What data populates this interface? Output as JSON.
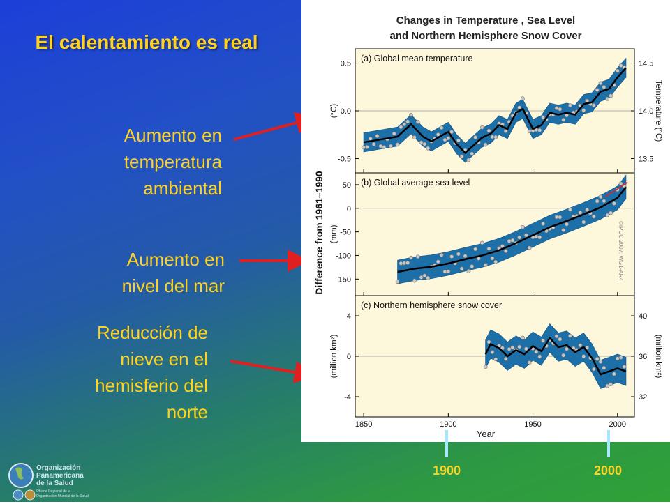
{
  "slide": {
    "title": "El calentamiento es real",
    "labels": [
      {
        "line1": "Aumento en",
        "line2": "temperatura",
        "line3": "ambiental"
      },
      {
        "line1": "Aumento en",
        "line2": "nivel del mar"
      },
      {
        "line1": "Reducción de",
        "line2": "nieve en el",
        "line3": "hemisferio del",
        "line4": "norte"
      }
    ],
    "year_markers": [
      "1900",
      "2000"
    ],
    "logo": {
      "line1": "Organización",
      "line2": "Panamericana",
      "line3": "de la Salud",
      "sub1": "Oficina Regional de la",
      "sub2": "Organización Mundial de la Salud"
    },
    "colors": {
      "label": "#ffd21f",
      "arrow": "#e02020",
      "marker": "#a8e8ff"
    }
  },
  "chart_data": {
    "title_line1": "Changes in Temperature , Sea Level",
    "title_line2": "and Northern Hemisphere Snow Cover",
    "shared_ylabel": "Difference from 1961–1990",
    "xlabel": "Year",
    "xticks": [
      "1850",
      "1900",
      "1950",
      "2000"
    ],
    "xlim": [
      1845,
      2010
    ],
    "copyright": "©IPCC 2007: WG1-AR4",
    "panels": [
      {
        "type": "line",
        "title": "(a) Global mean temperature",
        "ylabel": "(°C)",
        "ylabel_right": "Temperature (°C)",
        "yticks": [
          "0.5",
          "0.0",
          "-0.5"
        ],
        "ytick_values": [
          0.5,
          0.0,
          -0.5
        ],
        "yticks_right": [
          "14.5",
          "14.0",
          "13.5"
        ],
        "ylim": [
          -0.65,
          0.65
        ],
        "x": [
          1850,
          1860,
          1870,
          1878,
          1885,
          1890,
          1900,
          1905,
          1910,
          1915,
          1920,
          1925,
          1930,
          1935,
          1940,
          1944,
          1950,
          1955,
          1960,
          1965,
          1970,
          1975,
          1980,
          1985,
          1990,
          1995,
          2000,
          2005
        ],
        "smooth": [
          -0.33,
          -0.3,
          -0.27,
          -0.14,
          -0.27,
          -0.32,
          -0.22,
          -0.35,
          -0.44,
          -0.36,
          -0.28,
          -0.24,
          -0.15,
          -0.19,
          -0.02,
          0.02,
          -0.19,
          -0.15,
          -0.02,
          -0.04,
          -0.02,
          -0.04,
          0.07,
          0.09,
          0.2,
          0.23,
          0.35,
          0.45
        ],
        "band_halfwidth": 0.1
      },
      {
        "type": "line",
        "title": "(b) Global average sea level",
        "ylabel": "(mm)",
        "yticks": [
          "50",
          "0",
          "-50",
          "-100",
          "-150"
        ],
        "ytick_values": [
          50,
          0,
          -50,
          -100,
          -150
        ],
        "ylim": [
          -185,
          75
        ],
        "x": [
          1870,
          1880,
          1890,
          1900,
          1910,
          1920,
          1930,
          1940,
          1950,
          1960,
          1970,
          1980,
          1990,
          2000,
          2005
        ],
        "smooth": [
          -135,
          -128,
          -124,
          -117,
          -108,
          -100,
          -89,
          -74,
          -57,
          -40,
          -27,
          -13,
          2,
          22,
          45
        ],
        "band_halfwidth": 25,
        "satellite_x": [
          1993,
          2006
        ],
        "satellite_y": [
          25,
          55
        ]
      },
      {
        "type": "line",
        "title": "(c) Northern hemisphere snow cover",
        "ylabel": "(million km²)",
        "ylabel_right": "(million km²)",
        "yticks": [
          "4",
          "0",
          "-4"
        ],
        "ytick_values": [
          4,
          0,
          -4
        ],
        "yticks_right": [
          "40",
          "36",
          "32"
        ],
        "ylim": [
          -6,
          6
        ],
        "x": [
          1922,
          1925,
          1930,
          1935,
          1940,
          1945,
          1950,
          1955,
          1960,
          1965,
          1970,
          1975,
          1980,
          1985,
          1990,
          1995,
          2000,
          2005
        ],
        "smooth": [
          0.2,
          1.2,
          0.8,
          0.0,
          0.6,
          0.2,
          1.0,
          0.5,
          1.8,
          0.9,
          1.1,
          0.4,
          0.9,
          -0.2,
          -1.8,
          -1.5,
          -1.2,
          -1.5
        ],
        "band_halfwidth": 1.4
      }
    ]
  }
}
